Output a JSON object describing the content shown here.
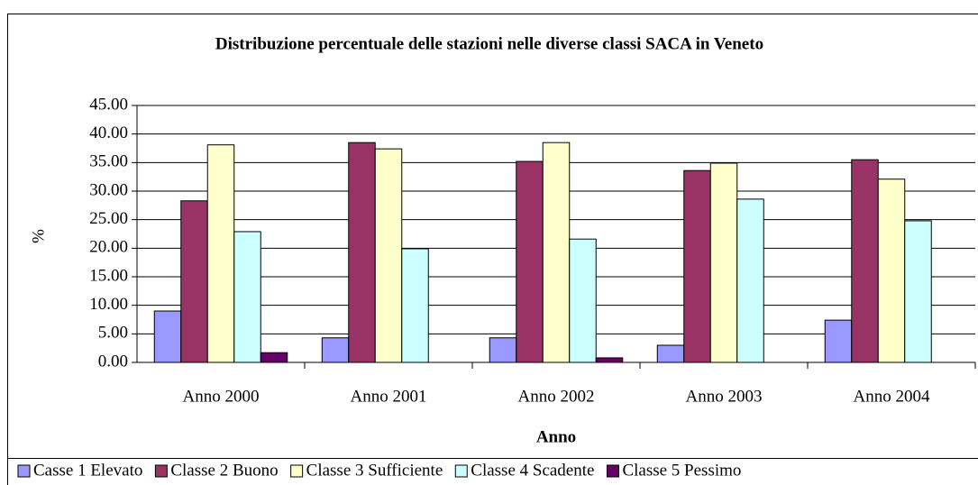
{
  "chart_data": {
    "type": "bar",
    "title": "Distribuzione percentuale delle stazioni nelle diverse classi SACA in Veneto",
    "x_label": "Anno",
    "y_label": "%",
    "categories": [
      "Anno 2000",
      "Anno 2001",
      "Anno 2002",
      "Anno 2003",
      "Anno 2004"
    ],
    "series": [
      {
        "name": "Casse 1 Elevato",
        "color": "#9999ff",
        "values": [
          9.0,
          4.3,
          4.3,
          3.0,
          7.4
        ]
      },
      {
        "name": "Classe 2 Buono",
        "color": "#993366",
        "values": [
          28.3,
          38.5,
          35.2,
          33.6,
          35.5
        ]
      },
      {
        "name": "Classe 3 Sufficiente",
        "color": "#ffffcc",
        "values": [
          38.1,
          37.4,
          38.5,
          34.9,
          32.1
        ]
      },
      {
        "name": "Classe 4 Scadente",
        "color": "#ccffff",
        "values": [
          22.9,
          19.9,
          21.6,
          28.6,
          24.8
        ]
      },
      {
        "name": "Classe 5 Pessimo",
        "color": "#660066",
        "values": [
          1.7,
          0,
          0.8,
          0,
          0
        ]
      }
    ],
    "ylim": [
      0,
      45
    ],
    "yticks": [
      {
        "value": 0,
        "label": "0.00"
      },
      {
        "value": 5,
        "label": "5.00"
      },
      {
        "value": 10,
        "label": "10.00"
      },
      {
        "value": 15,
        "label": "15.00"
      },
      {
        "value": 20,
        "label": "20.00"
      },
      {
        "value": 25,
        "label": "25.00"
      },
      {
        "value": 30,
        "label": "30.00"
      },
      {
        "value": 35,
        "label": "35.00"
      },
      {
        "value": 40,
        "label": "40.00"
      },
      {
        "value": 45,
        "label": "45.00"
      }
    ],
    "grid": true,
    "legend": "bottom"
  }
}
